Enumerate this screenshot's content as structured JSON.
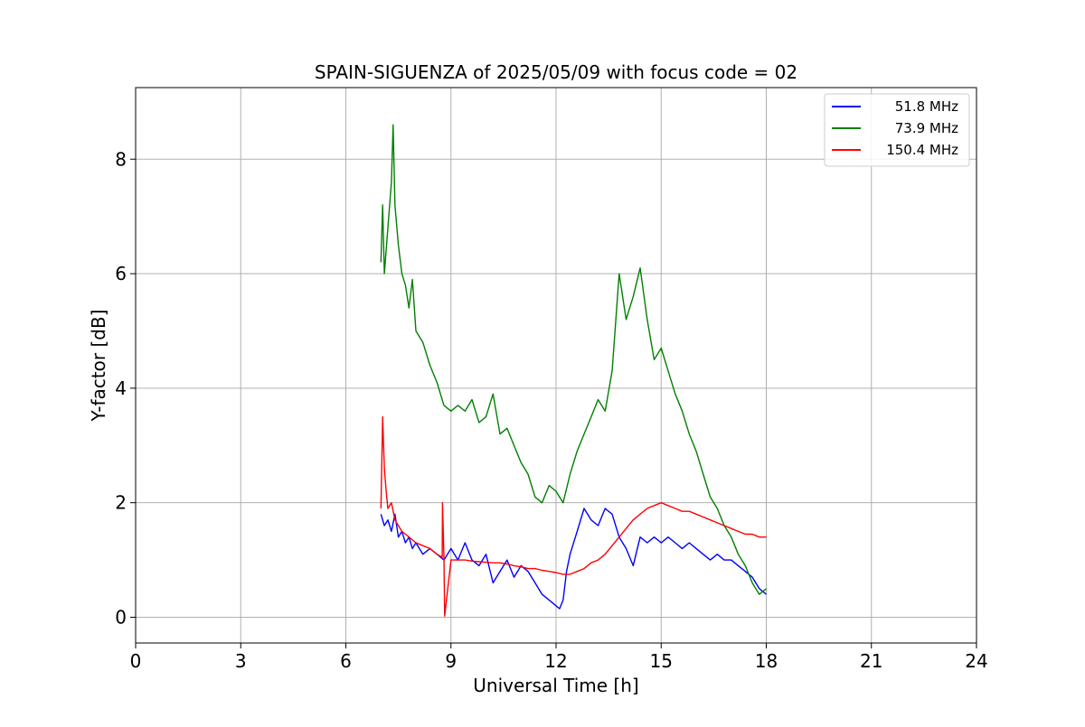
{
  "chart_data": {
    "type": "line",
    "title": "SPAIN-SIGUENZA of 2025/05/09 with focus code = 02",
    "xlabel": "Universal Time [h]",
    "ylabel": "Y-factor [dB]",
    "xlim": [
      0,
      24
    ],
    "ylim": [
      -0.45,
      9.25
    ],
    "xticks": [
      0,
      3,
      6,
      9,
      12,
      15,
      18,
      21,
      24
    ],
    "yticks": [
      0,
      2,
      4,
      6,
      8
    ],
    "grid": true,
    "legend_position": "top-right",
    "series": [
      {
        "name": "51.8 MHz",
        "color": "#0000ff",
        "x": [
          7.0,
          7.1,
          7.2,
          7.3,
          7.4,
          7.5,
          7.6,
          7.7,
          7.8,
          7.9,
          8.0,
          8.2,
          8.4,
          8.6,
          8.8,
          9.0,
          9.2,
          9.4,
          9.6,
          9.8,
          10.0,
          10.2,
          10.4,
          10.6,
          10.8,
          11.0,
          11.2,
          11.4,
          11.6,
          11.8,
          12.0,
          12.1,
          12.2,
          12.3,
          12.4,
          12.6,
          12.8,
          13.0,
          13.2,
          13.4,
          13.6,
          13.8,
          14.0,
          14.2,
          14.4,
          14.6,
          14.8,
          15.0,
          15.2,
          15.4,
          15.6,
          15.8,
          16.0,
          16.2,
          16.4,
          16.6,
          16.8,
          17.0,
          17.2,
          17.4,
          17.6,
          17.8,
          18.0
        ],
        "y": [
          1.8,
          1.6,
          1.7,
          1.5,
          1.8,
          1.4,
          1.5,
          1.3,
          1.4,
          1.2,
          1.3,
          1.1,
          1.2,
          1.1,
          1.0,
          1.2,
          1.0,
          1.3,
          1.0,
          0.9,
          1.1,
          0.6,
          0.8,
          1.0,
          0.7,
          0.9,
          0.8,
          0.6,
          0.4,
          0.3,
          0.2,
          0.15,
          0.3,
          0.8,
          1.1,
          1.5,
          1.9,
          1.7,
          1.6,
          1.9,
          1.8,
          1.4,
          1.2,
          0.9,
          1.4,
          1.3,
          1.4,
          1.3,
          1.4,
          1.3,
          1.2,
          1.3,
          1.2,
          1.1,
          1.0,
          1.1,
          1.0,
          1.0,
          0.9,
          0.8,
          0.7,
          0.5,
          0.4
        ]
      },
      {
        "name": "73.9 MHz",
        "color": "#008000",
        "x": [
          7.0,
          7.05,
          7.1,
          7.2,
          7.3,
          7.35,
          7.4,
          7.5,
          7.6,
          7.7,
          7.8,
          7.9,
          8.0,
          8.2,
          8.4,
          8.6,
          8.8,
          9.0,
          9.2,
          9.4,
          9.6,
          9.8,
          10.0,
          10.2,
          10.4,
          10.6,
          10.8,
          11.0,
          11.2,
          11.4,
          11.6,
          11.8,
          12.0,
          12.2,
          12.4,
          12.6,
          12.8,
          13.0,
          13.2,
          13.4,
          13.6,
          13.8,
          14.0,
          14.2,
          14.4,
          14.6,
          14.8,
          15.0,
          15.2,
          15.4,
          15.6,
          15.8,
          16.0,
          16.2,
          16.4,
          16.6,
          16.8,
          17.0,
          17.2,
          17.4,
          17.6,
          17.8,
          18.0
        ],
        "y": [
          6.2,
          7.2,
          6.0,
          6.8,
          7.6,
          8.6,
          7.2,
          6.5,
          6.0,
          5.8,
          5.4,
          5.9,
          5.0,
          4.8,
          4.4,
          4.1,
          3.7,
          3.6,
          3.7,
          3.6,
          3.8,
          3.4,
          3.5,
          3.9,
          3.2,
          3.3,
          3.0,
          2.7,
          2.5,
          2.1,
          2.0,
          2.3,
          2.2,
          2.0,
          2.5,
          2.9,
          3.2,
          3.5,
          3.8,
          3.6,
          4.3,
          6.0,
          5.2,
          5.6,
          6.1,
          5.2,
          4.5,
          4.7,
          4.3,
          3.9,
          3.6,
          3.2,
          2.9,
          2.5,
          2.1,
          1.9,
          1.6,
          1.4,
          1.1,
          0.9,
          0.6,
          0.4,
          0.5
        ]
      },
      {
        "name": "150.4 MHz",
        "color": "#ff0000",
        "x": [
          7.0,
          7.05,
          7.1,
          7.15,
          7.2,
          7.3,
          7.4,
          7.5,
          7.6,
          7.7,
          7.8,
          8.0,
          8.2,
          8.4,
          8.6,
          8.75,
          8.76,
          8.8,
          8.82,
          9.0,
          9.2,
          9.4,
          9.6,
          9.8,
          10.0,
          10.2,
          10.4,
          10.6,
          10.8,
          11.0,
          11.2,
          11.4,
          11.6,
          11.8,
          12.0,
          12.2,
          12.4,
          12.6,
          12.8,
          13.0,
          13.2,
          13.4,
          13.6,
          13.8,
          14.0,
          14.2,
          14.4,
          14.6,
          14.8,
          15.0,
          15.2,
          15.4,
          15.6,
          15.8,
          16.0,
          16.2,
          16.4,
          16.6,
          16.8,
          17.0,
          17.2,
          17.4,
          17.6,
          17.8,
          18.0
        ],
        "y": [
          1.9,
          3.5,
          2.6,
          2.2,
          1.9,
          2.0,
          1.7,
          1.6,
          1.5,
          1.45,
          1.4,
          1.3,
          1.25,
          1.2,
          1.1,
          1.05,
          2.0,
          1.05,
          0.02,
          1.0,
          1.0,
          1.0,
          0.98,
          0.97,
          0.96,
          0.95,
          0.95,
          0.93,
          0.9,
          0.88,
          0.85,
          0.85,
          0.82,
          0.8,
          0.78,
          0.75,
          0.75,
          0.8,
          0.85,
          0.95,
          1.0,
          1.1,
          1.25,
          1.4,
          1.55,
          1.7,
          1.8,
          1.9,
          1.95,
          2.0,
          1.95,
          1.9,
          1.85,
          1.85,
          1.8,
          1.75,
          1.7,
          1.65,
          1.6,
          1.55,
          1.5,
          1.45,
          1.45,
          1.4,
          1.4
        ]
      }
    ]
  }
}
